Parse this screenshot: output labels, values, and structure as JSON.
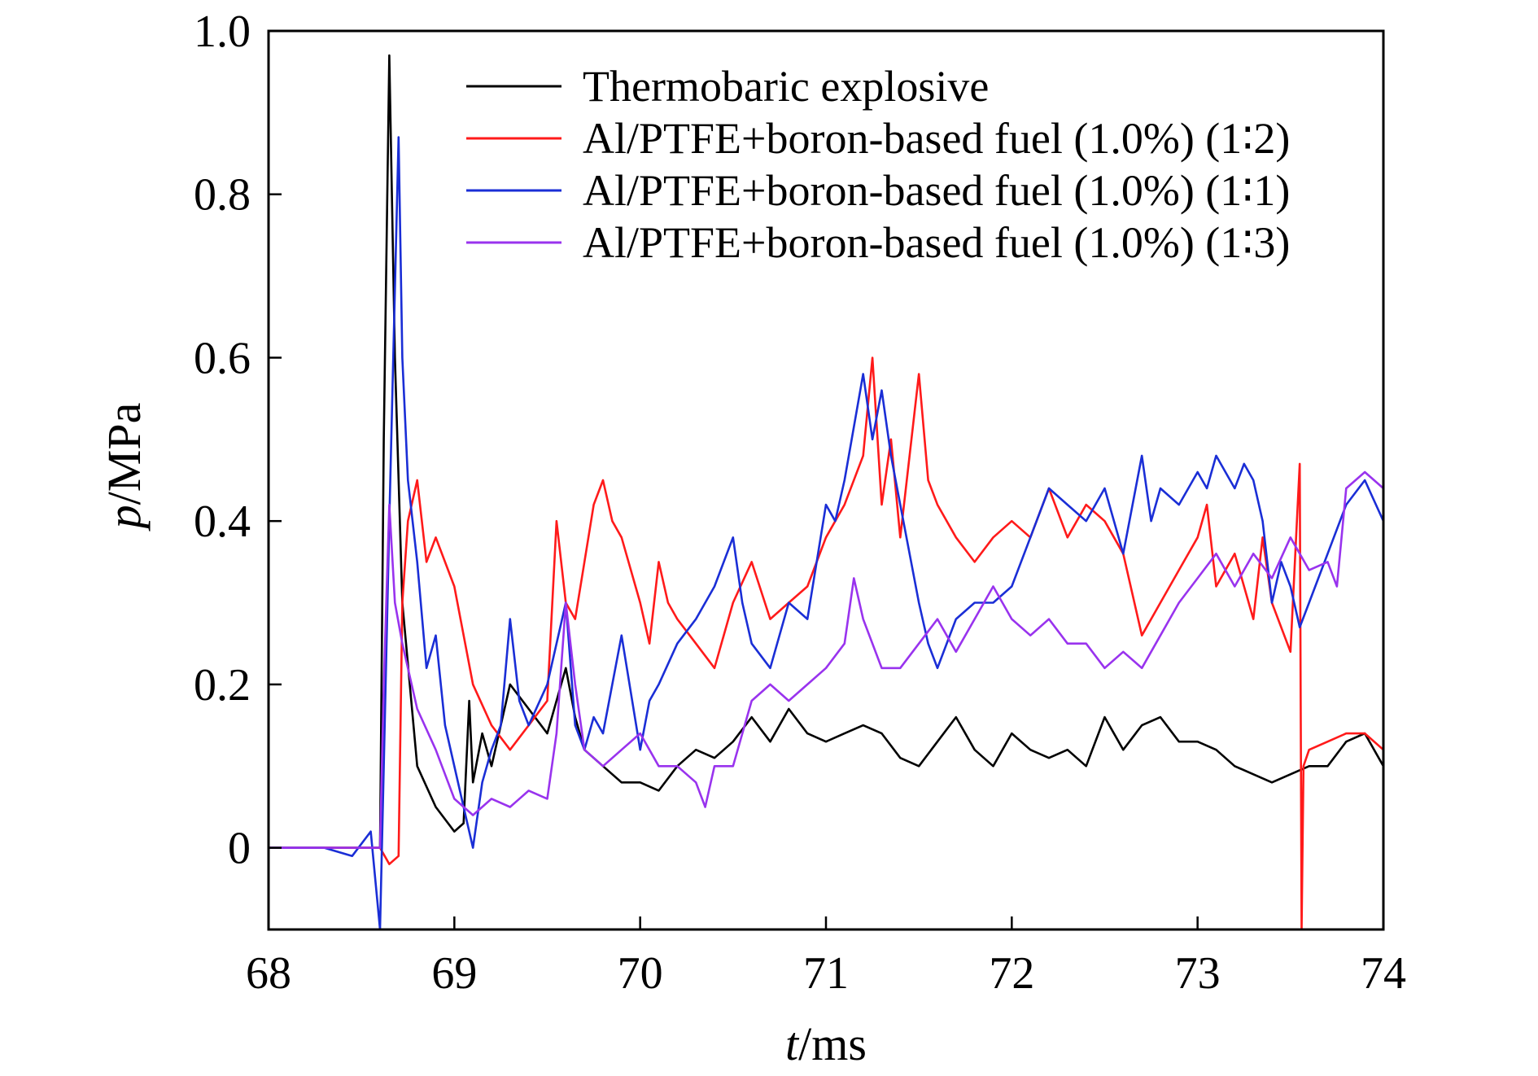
{
  "chart_data": {
    "type": "line",
    "xlabel": {
      "var": "t",
      "unit": "/ms"
    },
    "ylabel": {
      "var": "p",
      "unit": "/MPa"
    },
    "xlim": [
      68,
      74
    ],
    "ylim": [
      -0.1,
      1.0
    ],
    "xticks": [
      68,
      69,
      70,
      71,
      72,
      73,
      74
    ],
    "xtick_labels": [
      "68",
      "69",
      "70",
      "71",
      "72",
      "73",
      "74"
    ],
    "yticks": [
      0,
      0.2,
      0.4,
      0.6,
      0.8,
      1.0
    ],
    "ytick_labels": [
      "0",
      "0.2",
      "0.4",
      "0.6",
      "0.8",
      "1.0"
    ],
    "grid": false,
    "legend_position": "top-right",
    "series": [
      {
        "name": "Thermobaric explosive",
        "color": "#000000",
        "x": [
          68.0,
          68.3,
          68.6,
          68.62,
          68.65,
          68.68,
          68.72,
          68.8,
          68.9,
          69.0,
          69.05,
          69.08,
          69.1,
          69.15,
          69.2,
          69.3,
          69.4,
          69.5,
          69.6,
          69.65,
          69.7,
          69.8,
          69.9,
          70.0,
          70.1,
          70.2,
          70.3,
          70.4,
          70.5,
          70.6,
          70.7,
          70.8,
          70.9,
          71.0,
          71.1,
          71.2,
          71.3,
          71.4,
          71.5,
          71.6,
          71.7,
          71.8,
          71.9,
          72.0,
          72.1,
          72.2,
          72.3,
          72.4,
          72.5,
          72.6,
          72.7,
          72.8,
          72.9,
          73.0,
          73.1,
          73.2,
          73.3,
          73.4,
          73.5,
          73.6,
          73.7,
          73.8,
          73.9,
          74.0
        ],
        "y": [
          0.0,
          0.0,
          0.0,
          0.5,
          0.97,
          0.6,
          0.3,
          0.1,
          0.05,
          0.02,
          0.03,
          0.18,
          0.08,
          0.14,
          0.1,
          0.2,
          0.17,
          0.14,
          0.22,
          0.16,
          0.12,
          0.1,
          0.08,
          0.08,
          0.07,
          0.1,
          0.12,
          0.11,
          0.13,
          0.16,
          0.13,
          0.17,
          0.14,
          0.13,
          0.14,
          0.15,
          0.14,
          0.11,
          0.1,
          0.13,
          0.16,
          0.12,
          0.1,
          0.14,
          0.12,
          0.11,
          0.12,
          0.1,
          0.16,
          0.12,
          0.15,
          0.16,
          0.13,
          0.13,
          0.12,
          0.1,
          0.09,
          0.08,
          0.09,
          0.1,
          0.1,
          0.13,
          0.14,
          0.1
        ]
      },
      {
        "name": "Al/PTFE+boron-based fuel (1.0%) (1∶2)",
        "color": "#ff1a1a",
        "x": [
          68.0,
          68.3,
          68.6,
          68.65,
          68.7,
          68.72,
          68.75,
          68.8,
          68.85,
          68.9,
          69.0,
          69.1,
          69.2,
          69.3,
          69.4,
          69.5,
          69.55,
          69.6,
          69.65,
          69.7,
          69.75,
          69.8,
          69.85,
          69.9,
          70.0,
          70.05,
          70.1,
          70.15,
          70.2,
          70.3,
          70.4,
          70.5,
          70.6,
          70.7,
          70.8,
          70.9,
          71.0,
          71.1,
          71.2,
          71.25,
          71.3,
          71.35,
          71.4,
          71.5,
          71.55,
          71.6,
          71.7,
          71.8,
          71.9,
          72.0,
          72.1,
          72.2,
          72.3,
          72.4,
          72.5,
          72.6,
          72.7,
          72.8,
          72.9,
          73.0,
          73.05,
          73.1,
          73.2,
          73.3,
          73.35,
          73.4,
          73.5,
          73.55,
          73.56,
          73.57,
          73.6,
          73.7,
          73.8,
          73.9,
          74.0
        ],
        "y": [
          0.0,
          0.0,
          0.0,
          -0.02,
          -0.01,
          0.3,
          0.4,
          0.45,
          0.35,
          0.38,
          0.32,
          0.2,
          0.15,
          0.12,
          0.15,
          0.18,
          0.4,
          0.3,
          0.28,
          0.35,
          0.42,
          0.45,
          0.4,
          0.38,
          0.3,
          0.25,
          0.35,
          0.3,
          0.28,
          0.25,
          0.22,
          0.3,
          0.35,
          0.28,
          0.3,
          0.32,
          0.38,
          0.42,
          0.48,
          0.6,
          0.42,
          0.5,
          0.38,
          0.58,
          0.45,
          0.42,
          0.38,
          0.35,
          0.38,
          0.4,
          0.38,
          0.44,
          0.38,
          0.42,
          0.4,
          0.36,
          0.26,
          0.3,
          0.34,
          0.38,
          0.42,
          0.32,
          0.36,
          0.28,
          0.38,
          0.3,
          0.24,
          0.47,
          -0.1,
          0.1,
          0.12,
          0.13,
          0.14,
          0.14,
          0.12
        ]
      },
      {
        "name": "Al/PTFE+boron-based fuel (1.0%) (1∶1)",
        "color": "#1a2ed6",
        "x": [
          68.0,
          68.3,
          68.45,
          68.55,
          68.6,
          68.62,
          68.65,
          68.7,
          68.72,
          68.75,
          68.8,
          68.85,
          68.9,
          68.95,
          69.0,
          69.05,
          69.1,
          69.15,
          69.2,
          69.25,
          69.3,
          69.35,
          69.4,
          69.5,
          69.6,
          69.65,
          69.7,
          69.75,
          69.8,
          69.9,
          70.0,
          70.05,
          70.1,
          70.2,
          70.3,
          70.4,
          70.5,
          70.55,
          70.6,
          70.7,
          70.8,
          70.9,
          71.0,
          71.05,
          71.1,
          71.2,
          71.25,
          71.3,
          71.35,
          71.4,
          71.5,
          71.55,
          71.6,
          71.7,
          71.8,
          71.9,
          72.0,
          72.1,
          72.2,
          72.3,
          72.4,
          72.5,
          72.6,
          72.7,
          72.75,
          72.8,
          72.9,
          73.0,
          73.05,
          73.1,
          73.2,
          73.25,
          73.3,
          73.35,
          73.4,
          73.45,
          73.5,
          73.55,
          73.6,
          73.7,
          73.8,
          73.9,
          74.0
        ],
        "y": [
          0.0,
          0.0,
          -0.01,
          0.02,
          -0.1,
          0.1,
          0.4,
          0.87,
          0.6,
          0.45,
          0.35,
          0.22,
          0.26,
          0.15,
          0.1,
          0.05,
          0.0,
          0.08,
          0.12,
          0.15,
          0.28,
          0.18,
          0.15,
          0.2,
          0.3,
          0.15,
          0.12,
          0.16,
          0.14,
          0.26,
          0.12,
          0.18,
          0.2,
          0.25,
          0.28,
          0.32,
          0.38,
          0.3,
          0.25,
          0.22,
          0.3,
          0.28,
          0.42,
          0.4,
          0.45,
          0.58,
          0.5,
          0.56,
          0.48,
          0.42,
          0.3,
          0.25,
          0.22,
          0.28,
          0.3,
          0.3,
          0.32,
          0.38,
          0.44,
          0.42,
          0.4,
          0.44,
          0.36,
          0.48,
          0.4,
          0.44,
          0.42,
          0.46,
          0.44,
          0.48,
          0.44,
          0.47,
          0.45,
          0.4,
          0.3,
          0.35,
          0.32,
          0.27,
          0.3,
          0.36,
          0.42,
          0.45,
          0.4
        ]
      },
      {
        "name": "Al/PTFE+boron-based fuel (1.0%) (1∶3)",
        "color": "#9933ee",
        "x": [
          68.0,
          68.3,
          68.6,
          68.62,
          68.65,
          68.68,
          68.72,
          68.8,
          68.9,
          69.0,
          69.1,
          69.2,
          69.3,
          69.4,
          69.5,
          69.55,
          69.6,
          69.65,
          69.7,
          69.8,
          69.9,
          70.0,
          70.1,
          70.2,
          70.3,
          70.35,
          70.4,
          70.5,
          70.6,
          70.7,
          70.8,
          70.9,
          71.0,
          71.1,
          71.15,
          71.2,
          71.3,
          71.4,
          71.5,
          71.6,
          71.7,
          71.8,
          71.9,
          72.0,
          72.1,
          72.2,
          72.3,
          72.4,
          72.5,
          72.6,
          72.7,
          72.8,
          72.9,
          73.0,
          73.1,
          73.2,
          73.3,
          73.4,
          73.5,
          73.6,
          73.7,
          73.75,
          73.8,
          73.9,
          74.0
        ],
        "y": [
          0.0,
          0.0,
          0.0,
          0.2,
          0.42,
          0.3,
          0.25,
          0.17,
          0.12,
          0.06,
          0.04,
          0.06,
          0.05,
          0.07,
          0.06,
          0.14,
          0.3,
          0.2,
          0.12,
          0.1,
          0.12,
          0.14,
          0.1,
          0.1,
          0.08,
          0.05,
          0.1,
          0.1,
          0.18,
          0.2,
          0.18,
          0.2,
          0.22,
          0.25,
          0.33,
          0.28,
          0.22,
          0.22,
          0.25,
          0.28,
          0.24,
          0.28,
          0.32,
          0.28,
          0.26,
          0.28,
          0.25,
          0.25,
          0.22,
          0.24,
          0.22,
          0.26,
          0.3,
          0.33,
          0.36,
          0.32,
          0.36,
          0.33,
          0.38,
          0.34,
          0.35,
          0.32,
          0.44,
          0.46,
          0.44
        ]
      }
    ]
  }
}
